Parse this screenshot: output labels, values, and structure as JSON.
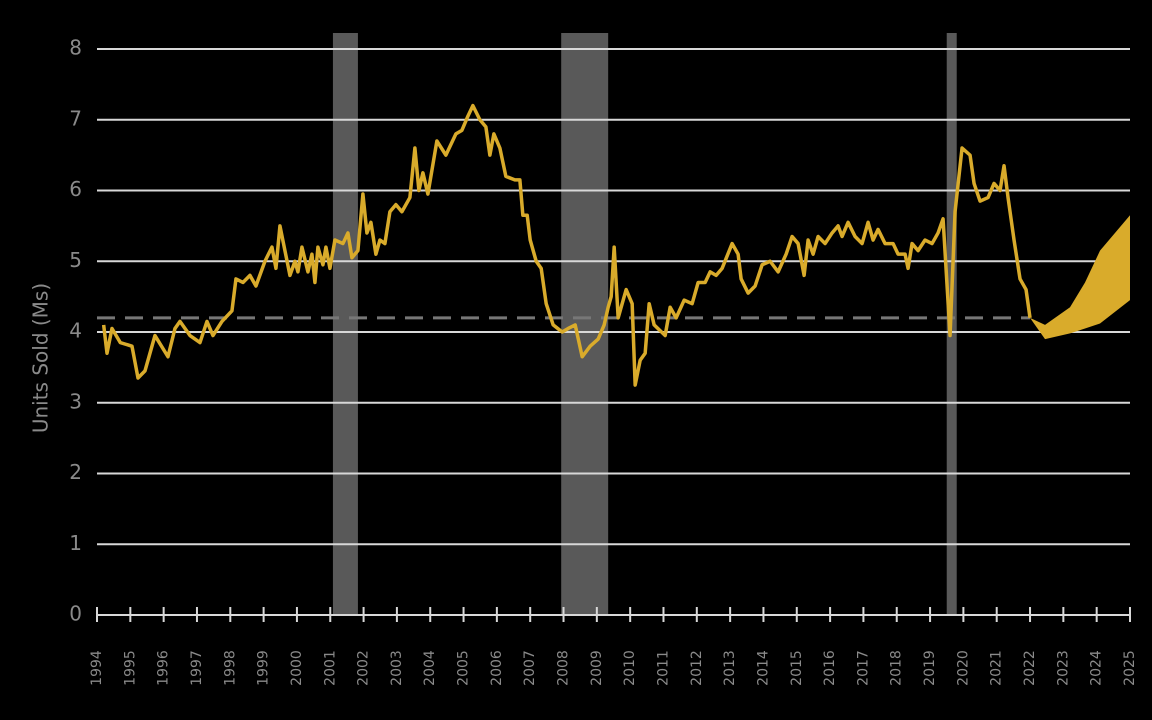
{
  "chart_data": {
    "type": "line",
    "ylabel": "Units Sold (Ms)",
    "xlim": [
      1994,
      2025
    ],
    "xticks": [
      1994,
      1995,
      1996,
      1997,
      1998,
      1999,
      2000,
      2001,
      2002,
      2003,
      2004,
      2005,
      2006,
      2007,
      2008,
      2009,
      2010,
      2011,
      2012,
      2013,
      2014,
      2015,
      2016,
      2017,
      2018,
      2019,
      2020,
      2021,
      2022,
      2023,
      2024,
      2025
    ],
    "ylim": [
      0,
      8
    ],
    "yticks": [
      0,
      1,
      2,
      3,
      4,
      5,
      6,
      7,
      8
    ],
    "grid": true,
    "x": [
      1994.2,
      1994.3,
      1994.45,
      1994.7,
      1995.05,
      1995.23,
      1995.44,
      1995.74,
      1996.13,
      1996.34,
      1996.49,
      1996.79,
      1997.09,
      1997.3,
      1997.48,
      1997.75,
      1998.05,
      1998.17,
      1998.38,
      1998.59,
      1998.77,
      1999.04,
      1999.25,
      1999.37,
      1999.49,
      1999.79,
      1999.94,
      2000.03,
      2000.15,
      2000.33,
      2000.45,
      2000.54,
      2000.63,
      2000.78,
      2000.87,
      2000.99,
      2001.14,
      2001.38,
      2001.53,
      2001.65,
      2001.83,
      2001.98,
      2002.1,
      2002.22,
      2002.37,
      2002.49,
      2002.64,
      2002.79,
      2002.97,
      2003.15,
      2003.39,
      2003.54,
      2003.66,
      2003.78,
      2003.93,
      2004.2,
      2004.47,
      2004.77,
      2004.95,
      2005.13,
      2005.28,
      2005.49,
      2005.67,
      2005.79,
      2005.91,
      2006.09,
      2006.27,
      2006.54,
      2006.69,
      2006.78,
      2006.91,
      2007.0,
      2007.18,
      2007.33,
      2007.48,
      2007.69,
      2007.96,
      2008.14,
      2008.35,
      2008.56,
      2008.8,
      2009.04,
      2009.22,
      2009.34,
      2009.43,
      2009.52,
      2009.64,
      2009.88,
      2010.06,
      2010.15,
      2010.3,
      2010.45,
      2010.57,
      2010.72,
      2011.05,
      2011.2,
      2011.38,
      2011.62,
      2011.86,
      2012.04,
      2012.25,
      2012.4,
      2012.58,
      2012.76,
      2013.06,
      2013.24,
      2013.33,
      2013.54,
      2013.75,
      2013.96,
      2014.2,
      2014.44,
      2014.68,
      2014.86,
      2015.04,
      2015.22,
      2015.34,
      2015.49,
      2015.64,
      2015.85,
      2016.06,
      2016.24,
      2016.36,
      2016.54,
      2016.75,
      2016.96,
      2017.14,
      2017.29,
      2017.44,
      2017.65,
      2017.89,
      2018.04,
      2018.25,
      2018.34,
      2018.46,
      2018.64,
      2018.85,
      2019.06,
      2019.24,
      2019.39,
      2019.6,
      2019.75,
      2019.96,
      2020.2,
      2020.32,
      2020.5,
      2020.74,
      2020.92,
      2021.1,
      2021.22,
      2021.34,
      2021.52,
      2021.7,
      2021.88,
      2022.0
    ],
    "series": [
      {
        "color": "#d9ab2b",
        "values": [
          4.1,
          3.7,
          4.05,
          3.85,
          3.8,
          3.35,
          3.45,
          3.95,
          3.65,
          4.05,
          4.15,
          3.95,
          3.85,
          4.15,
          3.95,
          4.15,
          4.3,
          4.75,
          4.7,
          4.8,
          4.65,
          5.0,
          5.2,
          4.9,
          5.5,
          4.8,
          5.0,
          4.85,
          5.2,
          4.85,
          5.1,
          4.7,
          5.2,
          4.95,
          5.2,
          4.9,
          5.3,
          5.25,
          5.4,
          5.05,
          5.15,
          5.95,
          5.4,
          5.55,
          5.1,
          5.3,
          5.25,
          5.7,
          5.8,
          5.7,
          5.9,
          6.6,
          6.0,
          6.25,
          5.95,
          6.7,
          6.5,
          6.8,
          6.85,
          7.05,
          7.2,
          7.0,
          6.9,
          6.5,
          6.8,
          6.6,
          6.2,
          6.15,
          6.15,
          5.65,
          5.65,
          5.3,
          5.0,
          4.9,
          4.4,
          4.1,
          4.0,
          4.05,
          4.1,
          3.65,
          3.8,
          3.9,
          4.1,
          4.35,
          4.5,
          5.2,
          4.2,
          4.6,
          4.4,
          3.25,
          3.6,
          3.7,
          4.4,
          4.1,
          3.95,
          4.35,
          4.2,
          4.45,
          4.4,
          4.7,
          4.7,
          4.85,
          4.8,
          4.9,
          5.25,
          5.1,
          4.75,
          4.55,
          4.65,
          4.95,
          5.0,
          4.85,
          5.1,
          5.35,
          5.25,
          4.8,
          5.3,
          5.1,
          5.35,
          5.25,
          5.4,
          5.5,
          5.35,
          5.55,
          5.35,
          5.25,
          5.55,
          5.3,
          5.45,
          5.25,
          5.25,
          5.1,
          5.1,
          4.9,
          5.25,
          5.15,
          5.3,
          5.25,
          5.4,
          5.6,
          3.95,
          5.7,
          6.6,
          6.5,
          6.1,
          5.85,
          5.9,
          6.1,
          6.0,
          6.35,
          5.9,
          5.3,
          4.75,
          4.6,
          4.2
        ]
      }
    ],
    "forecast": {
      "color": "#d9ab2b",
      "x": [
        2022.0,
        2022.45,
        2023.2,
        2023.65,
        2024.1,
        2025.0
      ],
      "lower": [
        4.2,
        3.9,
        3.98,
        4.05,
        4.12,
        4.45
      ],
      "upper": [
        4.2,
        4.1,
        4.35,
        4.7,
        5.15,
        5.65
      ]
    },
    "recessions": {
      "color": "#595959",
      "spans": [
        [
          2001.08,
          2001.83
        ],
        [
          2007.93,
          2009.34
        ],
        [
          2019.5,
          2019.8
        ]
      ]
    },
    "reference": {
      "color": "#777777",
      "value": 4.2,
      "x_end": 2022.0
    }
  }
}
